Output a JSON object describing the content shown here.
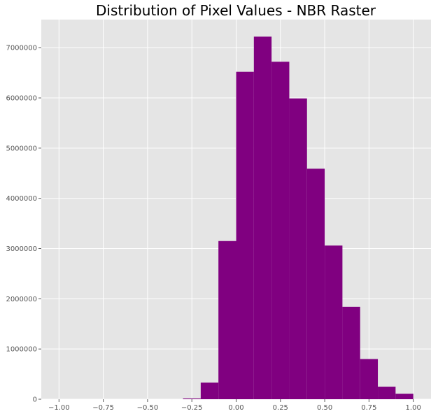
{
  "chart_data": {
    "type": "bar",
    "title": "Distribution of Pixel Values - NBR Raster",
    "xlabel": "",
    "ylabel": "",
    "xlim": [
      -1.1,
      1.1
    ],
    "ylim": [
      0,
      7560000
    ],
    "grid": true,
    "x_ticks": [
      -1.0,
      -0.75,
      -0.5,
      -0.25,
      0.0,
      0.25,
      0.5,
      0.75,
      1.0
    ],
    "x_tick_labels": [
      "−1.00",
      "−0.75",
      "−0.50",
      "−0.25",
      "0.00",
      "0.25",
      "0.50",
      "0.75",
      "1.00"
    ],
    "y_ticks": [
      0,
      1000000,
      2000000,
      3000000,
      4000000,
      5000000,
      6000000,
      7000000
    ],
    "y_tick_labels": [
      "0",
      "1000000",
      "2000000",
      "3000000",
      "4000000",
      "5000000",
      "6000000",
      "7000000"
    ],
    "bins": [
      [
        -1.0,
        -0.9
      ],
      [
        -0.9,
        -0.8
      ],
      [
        -0.8,
        -0.7
      ],
      [
        -0.7,
        -0.6
      ],
      [
        -0.6,
        -0.5
      ],
      [
        -0.5,
        -0.4
      ],
      [
        -0.4,
        -0.3
      ],
      [
        -0.3,
        -0.2
      ],
      [
        -0.2,
        -0.1
      ],
      [
        -0.1,
        0.0
      ],
      [
        0.0,
        0.1
      ],
      [
        0.1,
        0.2
      ],
      [
        0.2,
        0.3
      ],
      [
        0.3,
        0.4
      ],
      [
        0.4,
        0.5
      ],
      [
        0.5,
        0.6
      ],
      [
        0.6,
        0.7
      ],
      [
        0.7,
        0.8
      ],
      [
        0.8,
        0.9
      ],
      [
        0.9,
        1.0
      ]
    ],
    "values": [
      0,
      0,
      0,
      0,
      0,
      0,
      0,
      15000,
      330000,
      3150000,
      6520000,
      7220000,
      6720000,
      5990000,
      4590000,
      3060000,
      1840000,
      800000,
      250000,
      110000
    ],
    "bar_color": "#800080",
    "background_color": "#e5e5e5",
    "grid_color": "#ffffff"
  }
}
